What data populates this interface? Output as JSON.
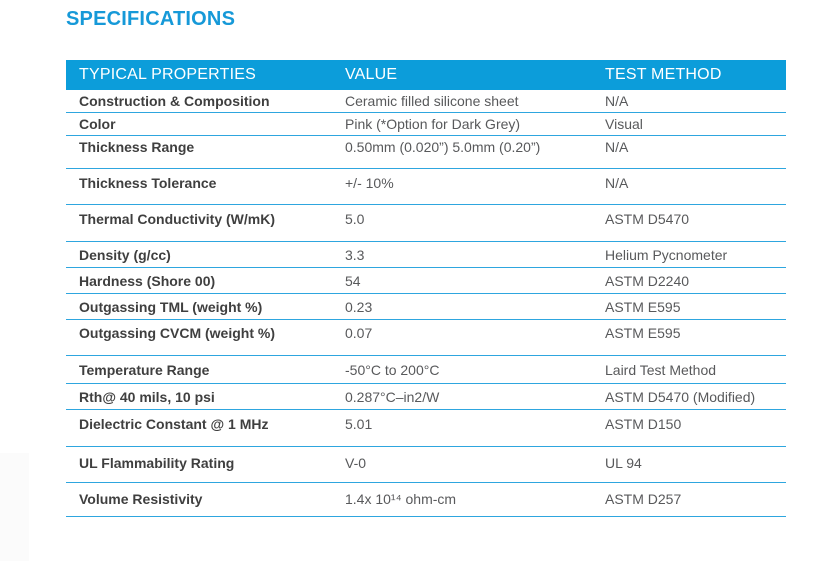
{
  "page": {
    "title": "SPECIFICATIONS"
  },
  "colors": {
    "accent_blue": "#0c9dda",
    "separator_blue": "#2ea6df",
    "title_blue": "#1699d8",
    "property_text": "#3f3f3f",
    "value_text": "#58595b"
  },
  "table": {
    "headers": [
      "TYPICAL PROPERTIES",
      "VALUE",
      "TEST METHOD"
    ],
    "rows": [
      {
        "property": "Construction & Composition",
        "value": "Ceramic filled silicone sheet",
        "method": "N/A"
      },
      {
        "property": "Color",
        "value": "Pink (*Option for Dark Grey)",
        "method": "Visual"
      },
      {
        "property": "Thickness Range",
        "value": "0.50mm (0.020”) 5.0mm (0.20”)",
        "method": "N/A"
      },
      {
        "property": "Thickness Tolerance",
        "value": "+/- 10%",
        "method": "N/A"
      },
      {
        "property": "Thermal Conductivity (W/mK)",
        "value": "5.0",
        "method": "ASTM D5470"
      },
      {
        "property": "Density (g/cc)",
        "value": "3.3",
        "method": "Helium Pycnometer"
      },
      {
        "property": "Hardness (Shore 00)",
        "value": "54",
        "method": "ASTM D2240"
      },
      {
        "property": "Outgassing TML (weight %)",
        "value": "0.23",
        "method": "ASTM E595"
      },
      {
        "property": "Outgassing CVCM (weight %)",
        "value": "0.07",
        "method": "ASTM E595"
      },
      {
        "property": "Temperature Range",
        "value": "-50°C to 200°C",
        "method": "Laird Test Method"
      },
      {
        "property": "Rth@ 40 mils, 10 psi",
        "value": "0.287°C–in2/W",
        "method": "ASTM D5470 (Modified)"
      },
      {
        "property": "Dielectric Constant @ 1 MHz",
        "value": "5.01",
        "method": "ASTM D150"
      },
      {
        "property": "UL Flammability Rating",
        "value": "V-0",
        "method": "UL 94"
      },
      {
        "property": "Volume Resistivity",
        "value": "1.4x 10¹⁴ ohm-cm",
        "method": "ASTM D257"
      }
    ]
  }
}
